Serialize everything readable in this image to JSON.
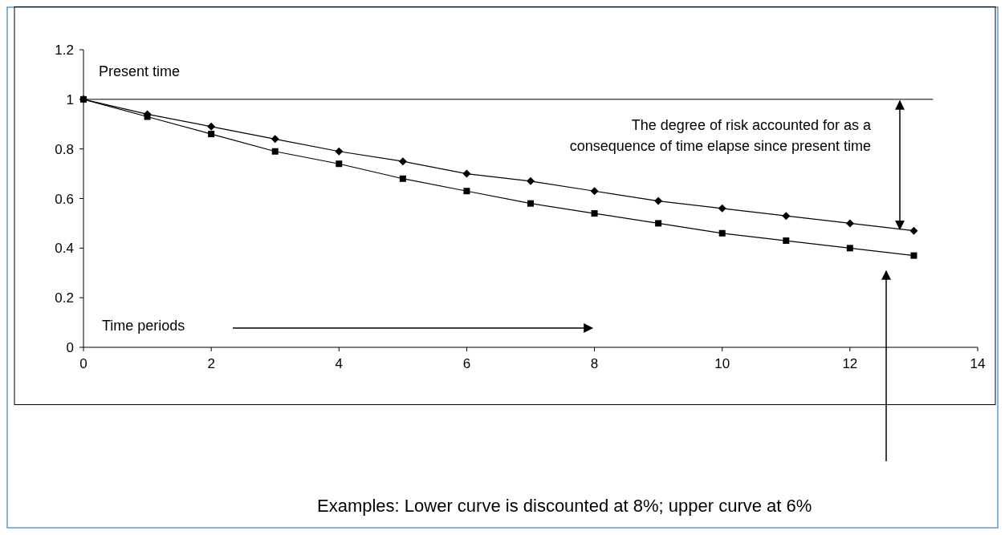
{
  "chart_data": {
    "type": "line",
    "x": [
      0,
      1,
      2,
      3,
      4,
      5,
      6,
      7,
      8,
      9,
      10,
      11,
      12,
      13
    ],
    "series": [
      {
        "color": "#000000",
        "marker": "diamond",
        "values": [
          1,
          0.94,
          0.89,
          0.84,
          0.79,
          0.75,
          0.7,
          0.67,
          0.63,
          0.59,
          0.56,
          0.53,
          0.5,
          0.47
        ]
      },
      {
        "color": "#000000",
        "marker": "square",
        "values": [
          1,
          0.93,
          0.86,
          0.79,
          0.74,
          0.68,
          0.63,
          0.58,
          0.54,
          0.5,
          0.46,
          0.43,
          0.4,
          0.37
        ]
      }
    ],
    "xlim": [
      0,
      14
    ],
    "xticks": [
      0,
      2,
      4,
      6,
      8,
      10,
      12,
      14
    ],
    "ylim": [
      0,
      1.2
    ],
    "yticks": [
      0,
      0.2,
      0.4,
      0.6,
      0.8,
      1,
      1.2
    ],
    "ref_lines": [
      {
        "axis": "y",
        "value": 1,
        "label": "Present time",
        "color": "#000000"
      }
    ],
    "annotations": [
      "The degree of risk accounted for as a\nconsequence of time elapse since present time",
      "Time periods",
      "Examples: Lower curve is discounted at 8%; upper curve at 6%"
    ],
    "line_style": "solid"
  }
}
